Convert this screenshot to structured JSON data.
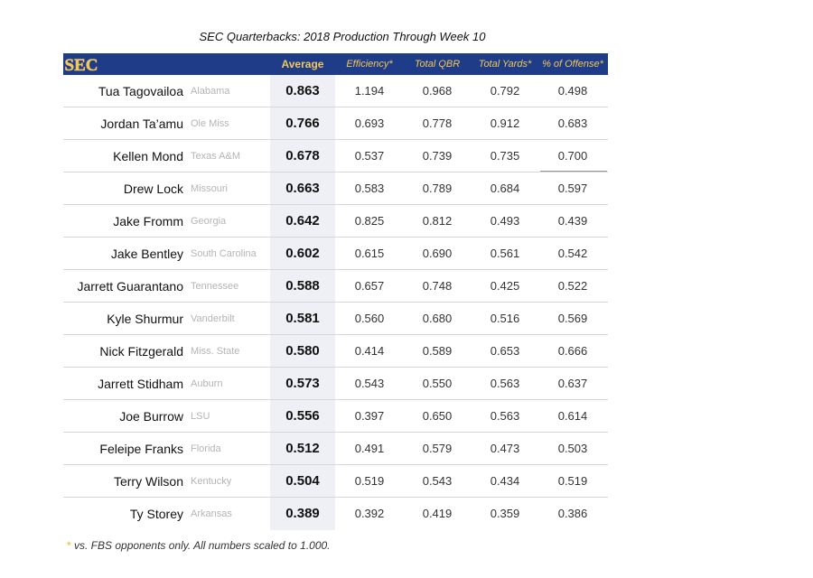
{
  "chart_data": {
    "type": "table",
    "title": "SEC Quarterbacks: 2018 Production Through Week 10",
    "logo_text": "SEC",
    "columns": [
      "Average",
      "Efficiency*",
      "Total QBR",
      "Total Yards*",
      "% of Offense*"
    ],
    "rows": [
      {
        "name": "Tua Tagovailoa",
        "school": "Alabama",
        "values": [
          "0.863",
          "1.194",
          "0.968",
          "0.792",
          "0.498"
        ]
      },
      {
        "name": "Jordan Ta’amu",
        "school": "Ole Miss",
        "values": [
          "0.766",
          "0.693",
          "0.778",
          "0.912",
          "0.683"
        ]
      },
      {
        "name": "Kellen Mond",
        "school": "Texas A&M",
        "values": [
          "0.678",
          "0.537",
          "0.739",
          "0.735",
          "0.700"
        ]
      },
      {
        "name": "Drew Lock",
        "school": "Missouri",
        "values": [
          "0.663",
          "0.583",
          "0.789",
          "0.684",
          "0.597"
        ]
      },
      {
        "name": "Jake Fromm",
        "school": "Georgia",
        "values": [
          "0.642",
          "0.825",
          "0.812",
          "0.493",
          "0.439"
        ]
      },
      {
        "name": "Jake Bentley",
        "school": "South Carolina",
        "values": [
          "0.602",
          "0.615",
          "0.690",
          "0.561",
          "0.542"
        ]
      },
      {
        "name": "Jarrett Guarantano",
        "school": "Tennessee",
        "values": [
          "0.588",
          "0.657",
          "0.748",
          "0.425",
          "0.522"
        ]
      },
      {
        "name": "Kyle Shurmur",
        "school": "Vanderbilt",
        "values": [
          "0.581",
          "0.560",
          "0.680",
          "0.516",
          "0.569"
        ]
      },
      {
        "name": "Nick Fitzgerald",
        "school": "Miss. State",
        "values": [
          "0.580",
          "0.414",
          "0.589",
          "0.653",
          "0.666"
        ]
      },
      {
        "name": "Jarrett Stidham",
        "school": "Auburn",
        "values": [
          "0.573",
          "0.543",
          "0.550",
          "0.563",
          "0.637"
        ]
      },
      {
        "name": "Joe Burrow",
        "school": "LSU",
        "values": [
          "0.556",
          "0.397",
          "0.650",
          "0.563",
          "0.614"
        ]
      },
      {
        "name": "Feleipe Franks",
        "school": "Florida",
        "values": [
          "0.512",
          "0.491",
          "0.579",
          "0.473",
          "0.503"
        ]
      },
      {
        "name": "Terry Wilson",
        "school": "Kentucky",
        "values": [
          "0.504",
          "0.519",
          "0.543",
          "0.434",
          "0.519"
        ]
      },
      {
        "name": "Ty Storey",
        "school": "Arkansas",
        "values": [
          "0.389",
          "0.392",
          "0.419",
          "0.359",
          "0.386"
        ]
      }
    ],
    "footnote_star": "*",
    "footnote": "vs. FBS opponents only. All numbers scaled to 1.000.",
    "colors": {
      "header_bg": "#1f3c88",
      "header_text": "#f2c75c",
      "average_column_bg": "#eef0f6",
      "school_text": "#b5b5b5"
    }
  }
}
